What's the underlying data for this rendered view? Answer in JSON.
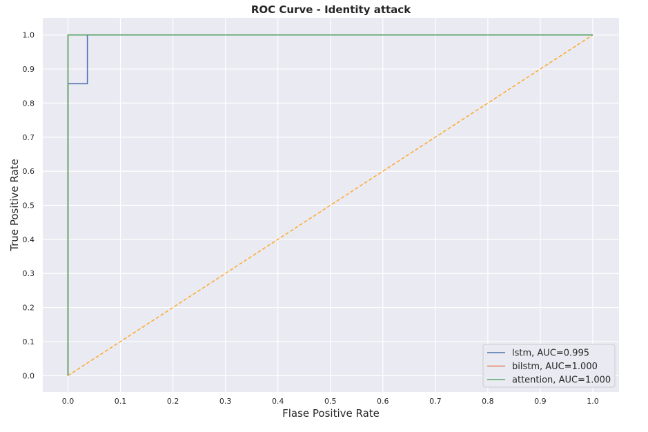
{
  "chart_data": {
    "type": "line",
    "title": "ROC Curve - Identity attack",
    "xlabel": "Flase Positive Rate",
    "ylabel": "True Positive Rate",
    "xlim": [
      -0.048,
      1.05
    ],
    "ylim": [
      -0.048,
      1.05
    ],
    "xticks": [
      0.0,
      0.1,
      0.2,
      0.3,
      0.4,
      0.5,
      0.6,
      0.7,
      0.8,
      0.9,
      1.0
    ],
    "yticks": [
      0.0,
      0.1,
      0.2,
      0.3,
      0.4,
      0.5,
      0.6,
      0.7,
      0.8,
      0.9,
      1.0
    ],
    "xtick_labels": [
      "0.0",
      "0.1",
      "0.2",
      "0.3",
      "0.4",
      "0.5",
      "0.6",
      "0.7",
      "0.8",
      "0.9",
      "1.0"
    ],
    "ytick_labels": [
      "0.0",
      "0.1",
      "0.2",
      "0.3",
      "0.4",
      "0.5",
      "0.6",
      "0.7",
      "0.8",
      "0.9",
      "1.0"
    ],
    "grid": true,
    "legend_position": "bottom-right",
    "series": [
      {
        "name": "lstm, AUC=0.995",
        "color": "#4c72b0",
        "points": [
          [
            0.0,
            0.0
          ],
          [
            0.0,
            0.857
          ],
          [
            0.037,
            0.857
          ],
          [
            0.037,
            1.0
          ],
          [
            1.0,
            1.0
          ]
        ]
      },
      {
        "name": "bilstm, AUC=1.000",
        "color": "#dd8452",
        "points": [
          [
            0.0,
            0.0
          ],
          [
            0.0,
            1.0
          ],
          [
            1.0,
            1.0
          ]
        ]
      },
      {
        "name": "attention, AUC=1.000",
        "color": "#55a868",
        "points": [
          [
            0.0,
            0.0
          ],
          [
            0.0,
            1.0
          ],
          [
            1.0,
            1.0
          ]
        ]
      }
    ],
    "reference_line": {
      "color": "#ffa726",
      "style": "dashed",
      "points": [
        [
          0.0,
          0.0
        ],
        [
          1.0,
          1.0
        ]
      ]
    }
  }
}
